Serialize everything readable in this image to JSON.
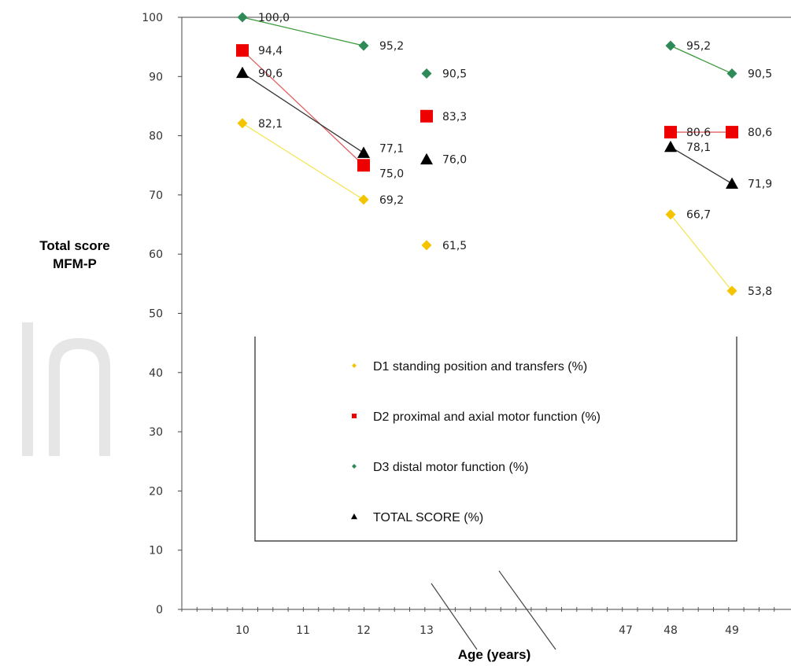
{
  "chart_data": {
    "type": "line",
    "ylabel_lines": [
      "Total score",
      "MFM-P"
    ],
    "xlabel": "Age (years)",
    "ylim": [
      0,
      100
    ],
    "y_ticks": [
      0,
      10,
      20,
      30,
      40,
      50,
      60,
      70,
      80,
      90,
      100
    ],
    "x_tick_labels": [
      {
        "age": 10,
        "label": "10"
      },
      {
        "age": 11,
        "label": "11"
      },
      {
        "age": 12,
        "label": "12"
      },
      {
        "age": 13,
        "label": "13"
      },
      {
        "age": 47,
        "label": "47"
      },
      {
        "age": 48,
        "label": "48"
      },
      {
        "age": 49,
        "label": "49"
      }
    ],
    "axis_break": "between 13 and 47",
    "legend_position": "center",
    "series": [
      {
        "name": "D1 standing position and transfers (%)",
        "marker": "diamond",
        "color": "#f5c400",
        "line_color": "#f3e55a",
        "points": [
          {
            "age": 10,
            "value": 82.1,
            "label": "82,1"
          },
          {
            "age": 12,
            "value": 69.2,
            "label": "69,2"
          },
          {
            "age": 13,
            "value": 61.5,
            "label": "61,5"
          },
          {
            "age": 48,
            "value": 66.7,
            "label": "66,7"
          },
          {
            "age": 49,
            "value": 53.8,
            "label": "53,8"
          }
        ],
        "connected": [
          [
            10,
            12
          ],
          [
            48,
            49
          ]
        ]
      },
      {
        "name": "D2 proximal and axial motor function (%)",
        "marker": "square",
        "color": "#ee0000",
        "line_color": "#e06060",
        "points": [
          {
            "age": 10,
            "value": 94.4,
            "label": "94,4"
          },
          {
            "age": 12,
            "value": 75.0,
            "label": "75,0"
          },
          {
            "age": 13,
            "value": 83.3,
            "label": "83,3"
          },
          {
            "age": 48,
            "value": 80.6,
            "label": "80,6"
          },
          {
            "age": 49,
            "value": 80.6,
            "label": "80,6"
          }
        ],
        "connected": [
          [
            10,
            12
          ],
          [
            48,
            49
          ]
        ]
      },
      {
        "name": "D3 distal motor function (%)",
        "marker": "diamond",
        "color": "#2e8b57",
        "line_color": "#3a9a3a",
        "points": [
          {
            "age": 10,
            "value": 100.0,
            "label": "100,0"
          },
          {
            "age": 12,
            "value": 95.2,
            "label": "95,2"
          },
          {
            "age": 13,
            "value": 90.5,
            "label": "90,5"
          },
          {
            "age": 48,
            "value": 95.2,
            "label": "95,2"
          },
          {
            "age": 49,
            "value": 90.5,
            "label": "90,5"
          }
        ],
        "connected": [
          [
            10,
            12
          ],
          [
            48,
            49
          ]
        ]
      },
      {
        "name": "TOTAL SCORE (%)",
        "marker": "triangle",
        "color": "#000000",
        "line_color": "#333333",
        "points": [
          {
            "age": 10,
            "value": 90.6,
            "label": "90,6"
          },
          {
            "age": 12,
            "value": 77.1,
            "label": "77,1"
          },
          {
            "age": 13,
            "value": 76.0,
            "label": "76,0"
          },
          {
            "age": 48,
            "value": 78.1,
            "label": "78,1"
          },
          {
            "age": 49,
            "value": 71.9,
            "label": "71,9"
          }
        ],
        "connected": [
          [
            10,
            12
          ],
          [
            48,
            49
          ]
        ]
      }
    ]
  }
}
